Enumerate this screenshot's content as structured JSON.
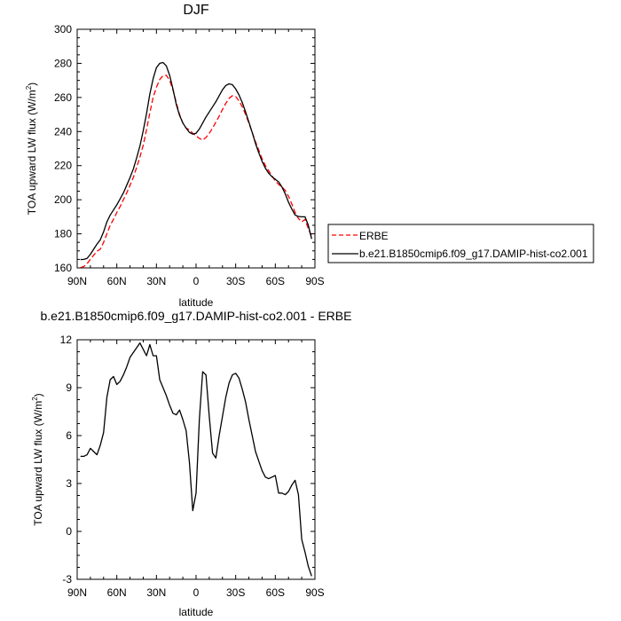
{
  "chart_data": [
    {
      "type": "line",
      "title": "DJF",
      "xlabel": "latitude",
      "ylabel": "TOA upward LW flux (W/m",
      "ylabel_sup": "2",
      "ylabel_close": ")",
      "xlim": [
        90,
        -90
      ],
      "ylim": [
        160,
        300
      ],
      "xticks": [
        90,
        60,
        30,
        0,
        -30,
        -60,
        -90
      ],
      "xtick_labels": [
        "90N",
        "60N",
        "30N",
        "0",
        "30S",
        "60S",
        "90S"
      ],
      "yticks": [
        160,
        180,
        200,
        220,
        240,
        260,
        280,
        300
      ],
      "ytick_labels": [
        "160",
        "180",
        "200",
        "220",
        "240",
        "260",
        "280",
        "300"
      ],
      "grid": false,
      "legend_position": "right",
      "series": [
        {
          "name": "ERBE",
          "color": "#ff0000",
          "dash": "dashed",
          "x": [
            87.5,
            85,
            82.5,
            80,
            77.5,
            75,
            72.5,
            70,
            67.5,
            65,
            62.5,
            60,
            57.5,
            55,
            52.5,
            50,
            47.5,
            45,
            42.5,
            40,
            37.5,
            35,
            32.5,
            30,
            27.5,
            25,
            22.5,
            20,
            17.5,
            15,
            12.5,
            10,
            7.5,
            5,
            2.5,
            0,
            -2.5,
            -5,
            -7.5,
            -10,
            -12.5,
            -15,
            -17.5,
            -20,
            -22.5,
            -25,
            -27.5,
            -30,
            -32.5,
            -35,
            -37.5,
            -40,
            -42.5,
            -45,
            -47.5,
            -50,
            -52.5,
            -55,
            -57.5,
            -60,
            -62.5,
            -65,
            -67.5,
            -70,
            -72.5,
            -75,
            -77.5,
            -80,
            -82.5,
            -85,
            -87.5
          ],
          "y": [
            160.2,
            160.8,
            162.5,
            165.0,
            167.5,
            169.8,
            171.0,
            175.0,
            180.0,
            185.0,
            188.5,
            192.5,
            196.0,
            200.0,
            204.0,
            208.5,
            213.0,
            219.0,
            225.0,
            232.0,
            241.0,
            251.0,
            260.0,
            266.0,
            270.5,
            272.8,
            273.0,
            270.0,
            264.5,
            257.0,
            250.0,
            245.0,
            242.0,
            241.0,
            239.0,
            237.5,
            236.0,
            235.0,
            236.5,
            239.0,
            242.0,
            245.5,
            249.0,
            253.0,
            256.5,
            259.5,
            261.0,
            260.5,
            258.0,
            254.5,
            250.0,
            245.0,
            239.5,
            234.0,
            229.0,
            224.0,
            220.0,
            217.0,
            214.0,
            211.0,
            209.0,
            207.5,
            205.5,
            202.0,
            197.5,
            192.5,
            189.0,
            187.0,
            188.5,
            183.0,
            178.5
          ]
        },
        {
          "name": "b.e21.B1850cmip6.f09_g17.DAMIP-hist-co2.001",
          "color": "#000000",
          "dash": "solid",
          "x": [
            87.5,
            85,
            82.5,
            80,
            77.5,
            75,
            72.5,
            70,
            67.5,
            65,
            62.5,
            60,
            57.5,
            55,
            52.5,
            50,
            47.5,
            45,
            42.5,
            40,
            37.5,
            35,
            32.5,
            30,
            27.5,
            25,
            22.5,
            20,
            17.5,
            15,
            12.5,
            10,
            7.5,
            5,
            2.5,
            0,
            -2.5,
            -5,
            -7.5,
            -10,
            -12.5,
            -15,
            -17.5,
            -20,
            -22.5,
            -25,
            -27.5,
            -30,
            -32.5,
            -35,
            -37.5,
            -40,
            -42.5,
            -45,
            -47.5,
            -50,
            -52.5,
            -55,
            -57.5,
            -60,
            -62.5,
            -65,
            -67.5,
            -70,
            -72.5,
            -75,
            -77.5,
            -80,
            -82.5,
            -85,
            -87.5
          ],
          "y": [
            164.9,
            165.0,
            165.6,
            168.0,
            171.0,
            174.0,
            176.5,
            181.2,
            187.0,
            191.0,
            194.0,
            197.0,
            200.5,
            204.0,
            208.5,
            213.0,
            218.0,
            224.5,
            231.5,
            240.5,
            250.5,
            262.0,
            271.0,
            277.5,
            280.0,
            280.5,
            278.5,
            273.0,
            265.0,
            256.0,
            249.5,
            245.0,
            242.0,
            239.5,
            238.5,
            239.0,
            241.5,
            245.0,
            248.5,
            251.5,
            254.5,
            257.5,
            261.0,
            264.5,
            267.0,
            268.0,
            267.5,
            265.0,
            261.5,
            257.0,
            251.5,
            245.5,
            239.5,
            233.0,
            227.5,
            222.5,
            218.5,
            215.5,
            213.5,
            212.0,
            210.5,
            207.5,
            203.5,
            198.5,
            194.5,
            191.0,
            190.2,
            190.0,
            190.0,
            185.0,
            177.0
          ]
        }
      ]
    },
    {
      "type": "line",
      "title": "b.e21.B1850cmip6.f09_g17.DAMIP-hist-co2.001 - ERBE",
      "xlabel": "latitude",
      "ylabel": "TOA upward LW flux (W/m",
      "ylabel_sup": "2",
      "ylabel_close": ")",
      "xlim": [
        90,
        -90
      ],
      "ylim": [
        -3,
        12
      ],
      "xticks": [
        90,
        60,
        30,
        0,
        -30,
        -60,
        -90
      ],
      "xtick_labels": [
        "90N",
        "60N",
        "30N",
        "0",
        "30S",
        "60S",
        "90S"
      ],
      "yticks": [
        -3,
        0,
        3,
        6,
        9,
        12
      ],
      "ytick_labels": [
        "-3",
        "0",
        "3",
        "6",
        "9",
        "12"
      ],
      "grid": false,
      "series": [
        {
          "color": "#000000",
          "dash": "solid",
          "x": [
            87.5,
            85,
            82.5,
            80,
            77.5,
            75,
            72.5,
            70,
            67.5,
            65,
            62.5,
            60,
            57.5,
            55,
            52.5,
            50,
            47.5,
            45,
            42.5,
            40,
            37.5,
            35,
            32.5,
            30,
            27.5,
            25,
            22.5,
            20,
            17.5,
            15,
            12.5,
            10,
            7.5,
            5,
            2.5,
            0,
            -2.5,
            -5,
            -7.5,
            -10,
            -12.5,
            -15,
            -17.5,
            -20,
            -22.5,
            -25,
            -27.5,
            -30,
            -32.5,
            -35,
            -37.5,
            -40,
            -42.5,
            -45,
            -47.5,
            -50,
            -52.5,
            -55,
            -57.5,
            -60,
            -62.5,
            -65,
            -67.5,
            -70,
            -72.5,
            -75,
            -77.5,
            -80,
            -82.5,
            -85,
            -87.5
          ],
          "y": [
            4.7,
            4.7,
            4.8,
            5.2,
            5.0,
            4.8,
            5.4,
            6.2,
            8.4,
            9.5,
            9.7,
            9.2,
            9.4,
            9.8,
            10.3,
            10.9,
            11.2,
            11.5,
            11.8,
            11.4,
            11.0,
            11.7,
            11.0,
            11.0,
            9.5,
            9.0,
            8.5,
            7.9,
            7.4,
            7.3,
            7.6,
            7.0,
            6.3,
            4.3,
            1.3,
            2.4,
            7.0,
            10.0,
            9.8,
            7.2,
            4.9,
            4.6,
            6.0,
            7.2,
            8.4,
            9.3,
            9.8,
            9.9,
            9.6,
            8.9,
            8.1,
            7.0,
            6.0,
            5.0,
            4.4,
            3.8,
            3.4,
            3.3,
            3.4,
            3.5,
            2.4,
            2.4,
            2.3,
            2.5,
            2.9,
            3.2,
            2.3,
            -0.5,
            -1.3,
            -2.2,
            -2.8
          ]
        }
      ]
    }
  ]
}
